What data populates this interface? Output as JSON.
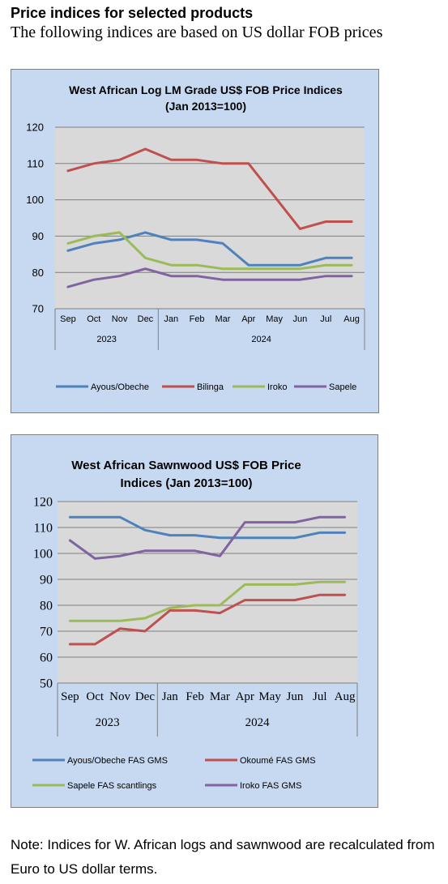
{
  "header": {
    "title": "Price indices for selected products",
    "subtitle": "The following indices are based on US dollar FOB prices"
  },
  "chart_data": [
    {
      "type": "line",
      "title": "West African Log LM Grade US$ FOB Price Indices",
      "subtitle": "(Jan 2013=100)",
      "categories": [
        "Sep",
        "Oct",
        "Nov",
        "Dec",
        "Jan",
        "Feb",
        "Mar",
        "Apr",
        "May",
        "Jun",
        "Jul",
        "Aug"
      ],
      "year_groups": [
        {
          "label": "2023",
          "span": [
            0,
            3
          ]
        },
        {
          "label": "2024",
          "span": [
            4,
            11
          ]
        }
      ],
      "ylim": [
        70,
        120
      ],
      "yticks": [
        70,
        80,
        90,
        100,
        110,
        120
      ],
      "grid": true,
      "legend_position": "bottom",
      "series": [
        {
          "name": "Ayous/Obeche",
          "color": "#4f81bd",
          "values": [
            86,
            88,
            89,
            91,
            89,
            89,
            88,
            82,
            82,
            82,
            84,
            84
          ]
        },
        {
          "name": "Bilinga",
          "color": "#c0504d",
          "values": [
            108,
            110,
            111,
            114,
            111,
            111,
            110,
            110,
            101,
            92,
            94,
            94
          ]
        },
        {
          "name": "Iroko",
          "color": "#9bbb59",
          "values": [
            88,
            90,
            91,
            84,
            82,
            82,
            81,
            81,
            81,
            81,
            82,
            82
          ]
        },
        {
          "name": "Sapele",
          "color": "#8064a2",
          "values": [
            76,
            78,
            79,
            81,
            79,
            79,
            78,
            78,
            78,
            78,
            79,
            79
          ]
        }
      ]
    },
    {
      "type": "line",
      "title": "West African Sawnwood US$ FOB Price",
      "subtitle": "Indices (Jan 2013=100)",
      "categories": [
        "Sep",
        "Oct",
        "Nov",
        "Dec",
        "Jan",
        "Feb",
        "Mar",
        "Apr",
        "May",
        "Jun",
        "Jul",
        "Aug"
      ],
      "year_groups": [
        {
          "label": "2023",
          "span": [
            0,
            3
          ]
        },
        {
          "label": "2024",
          "span": [
            4,
            11
          ]
        }
      ],
      "ylim": [
        50,
        120
      ],
      "yticks": [
        50,
        60,
        70,
        80,
        90,
        100,
        110,
        120
      ],
      "grid": true,
      "legend_position": "bottom",
      "series": [
        {
          "name": "Ayous/Obeche  FAS GMS",
          "color": "#4f81bd",
          "values": [
            114,
            114,
            114,
            109,
            107,
            107,
            106,
            106,
            106,
            106,
            108,
            108
          ]
        },
        {
          "name": "Okoumé  FAS GMS",
          "color": "#c0504d",
          "values": [
            65,
            65,
            71,
            70,
            78,
            78,
            77,
            82,
            82,
            82,
            84,
            84
          ]
        },
        {
          "name": "Sapele FAS scantlings",
          "color": "#9bbb59",
          "values": [
            74,
            74,
            74,
            75,
            79,
            80,
            80,
            88,
            88,
            88,
            89,
            89
          ]
        },
        {
          "name": "Iroko FAS GMS",
          "color": "#8064a2",
          "values": [
            105,
            98,
            99,
            101,
            101,
            101,
            99,
            112,
            112,
            112,
            114,
            114
          ]
        }
      ]
    }
  ],
  "note": "Note: Indices for W. African logs and sawnwood are recalculated from Euro to US dollar terms."
}
